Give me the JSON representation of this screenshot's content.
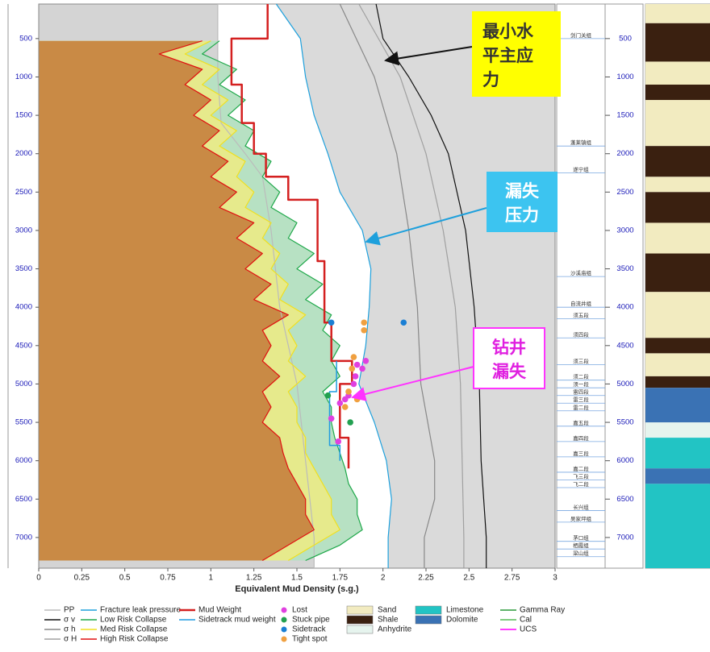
{
  "chart_data": {
    "type": "line",
    "orientation": "vertical-depth",
    "x_label": "Equivalent Mud Density (s.g.)",
    "xlim": [
      0,
      3
    ],
    "xticks": [
      0,
      0.25,
      0.5,
      0.75,
      1,
      1.25,
      1.5,
      1.75,
      2,
      2.25,
      2.5,
      2.75,
      3
    ],
    "ylim": [
      50,
      7400
    ],
    "y_inverted": true,
    "yticks": [
      500,
      1000,
      1500,
      2000,
      2500,
      3000,
      3500,
      4000,
      4500,
      5000,
      5500,
      6000,
      6500,
      7000
    ],
    "series": [
      {
        "name": "PP",
        "color": "#bbbbbb",
        "style": "line",
        "fill": "#d4d4d4",
        "fill_side": "left",
        "values": [
          1.04,
          1.04,
          1.06,
          1.2,
          1.3,
          1.35,
          1.4,
          1.5,
          1.55,
          1.6,
          1.6
        ],
        "depth": [
          50,
          1000,
          1600,
          2000,
          2300,
          3000,
          4000,
          5000,
          6000,
          7000,
          7400
        ]
      },
      {
        "name": "σ v",
        "color": "#111111",
        "style": "line",
        "fill": "#a8a8a8",
        "fill_side": "right",
        "values": [
          1.96,
          2.0,
          2.15,
          2.28,
          2.38,
          2.48,
          2.53,
          2.56,
          2.57,
          2.6,
          2.6
        ],
        "depth": [
          50,
          500,
          1000,
          1500,
          2000,
          3000,
          4000,
          5000,
          6000,
          7000,
          7400
        ]
      },
      {
        "name": "σ h",
        "color": "#888888",
        "style": "line",
        "fill": "#c8c8c8",
        "fill_side": "right",
        "values": [
          1.75,
          1.95,
          2.08,
          2.15,
          2.2,
          2.22,
          2.3,
          2.3,
          2.24,
          2.24
        ],
        "depth": [
          50,
          1000,
          2000,
          3000,
          4000,
          5000,
          6000,
          6500,
          7000,
          7400
        ]
      },
      {
        "name": "σ H",
        "color": "#a0a0a0",
        "style": "line",
        "fill": "#b6b6b6",
        "fill_side": "right",
        "values": [
          1.86,
          2.1,
          2.25,
          2.35,
          2.42,
          2.45,
          2.46,
          2.47,
          2.47
        ],
        "depth": [
          50,
          1000,
          2000,
          3000,
          4000,
          5000,
          6000,
          7000,
          7400
        ]
      },
      {
        "name": "Fracture leak pressure",
        "color": "#1ea0dc",
        "style": "line",
        "fill": "#dadada",
        "fill_side": "right",
        "values": [
          1.38,
          1.52,
          1.55,
          1.6,
          1.68,
          1.75,
          1.88,
          1.93,
          1.92,
          1.9,
          1.86,
          1.95,
          2.02,
          2.05,
          2.03,
          2.03
        ],
        "depth": [
          50,
          500,
          1000,
          1500,
          2000,
          2500,
          3000,
          3500,
          4000,
          4500,
          5000,
          5500,
          6000,
          6500,
          7000,
          7400
        ]
      },
      {
        "name": "Low Risk Collapse",
        "color": "#1fa84a",
        "style": "line",
        "fill": "#b7e1c3",
        "fill_side": "left",
        "values": [
          1.05,
          0.95,
          1.15,
          1.05,
          1.2,
          1.1,
          1.25,
          1.2,
          1.35,
          1.3,
          1.4,
          1.35,
          1.5,
          1.45,
          1.6,
          1.5,
          1.65,
          1.55,
          1.7,
          1.65,
          1.75,
          1.7,
          1.75,
          1.65,
          1.7,
          1.7,
          1.72,
          1.75,
          1.78,
          1.8,
          1.85,
          1.85,
          1.88,
          1.75,
          1.55
        ],
        "depth": [
          530,
          700,
          900,
          1100,
          1300,
          1500,
          1700,
          1900,
          2100,
          2300,
          2500,
          2700,
          2900,
          3100,
          3300,
          3500,
          3700,
          3900,
          4100,
          4300,
          4500,
          4700,
          4900,
          5100,
          5300,
          5500,
          5700,
          5900,
          6100,
          6300,
          6500,
          6700,
          6900,
          7100,
          7300
        ]
      },
      {
        "name": "Med Risk Collapse",
        "color": "#f0e020",
        "style": "line",
        "fill": "#e6ea8c",
        "fill_side": "left",
        "values": [
          1.0,
          0.85,
          1.05,
          0.95,
          1.1,
          1.0,
          1.15,
          1.05,
          1.2,
          1.15,
          1.25,
          1.2,
          1.35,
          1.3,
          1.4,
          1.35,
          1.45,
          1.4,
          1.55,
          1.45,
          1.5,
          1.45,
          1.55,
          1.45,
          1.5,
          1.5,
          1.55,
          1.55,
          1.6,
          1.65,
          1.7,
          1.7,
          1.75,
          1.6,
          1.45
        ],
        "depth": [
          530,
          700,
          900,
          1100,
          1300,
          1500,
          1700,
          1900,
          2100,
          2300,
          2500,
          2700,
          2900,
          3100,
          3300,
          3500,
          3700,
          3900,
          4100,
          4300,
          4500,
          4700,
          4900,
          5100,
          5300,
          5500,
          5700,
          5900,
          6100,
          6300,
          6500,
          6700,
          6900,
          7100,
          7300
        ]
      },
      {
        "name": "High Risk Collapse",
        "color": "#e01010",
        "style": "line",
        "fill": "#c98a45",
        "fill_side": "left",
        "values": [
          0.95,
          0.7,
          0.95,
          0.85,
          1.0,
          0.9,
          1.05,
          0.95,
          1.1,
          1.0,
          1.15,
          1.05,
          1.25,
          1.15,
          1.3,
          1.2,
          1.35,
          1.25,
          1.45,
          1.3,
          1.35,
          1.3,
          1.4,
          1.3,
          1.35,
          1.3,
          1.4,
          1.42,
          1.45,
          1.5,
          1.55,
          1.55,
          1.6,
          1.45,
          1.3
        ],
        "depth": [
          530,
          700,
          900,
          1100,
          1300,
          1500,
          1700,
          1900,
          2100,
          2300,
          2500,
          2700,
          2900,
          3100,
          3300,
          3500,
          3700,
          3900,
          4100,
          4300,
          4500,
          4700,
          4900,
          5100,
          5300,
          5500,
          5700,
          5900,
          6100,
          6300,
          6500,
          6700,
          6900,
          7100,
          7300
        ]
      },
      {
        "name": "Mud Weight",
        "color": "#d42020",
        "style": "line",
        "width": 2.5,
        "values": [
          1.33,
          1.33,
          1.12,
          1.12,
          1.18,
          1.18,
          1.25,
          1.25,
          1.32,
          1.32,
          1.45,
          1.45,
          1.62,
          1.62,
          1.66,
          1.66,
          1.7,
          1.7,
          1.82,
          1.82,
          1.75,
          1.75,
          1.8,
          1.8
        ],
        "depth": [
          50,
          500,
          500,
          1100,
          1100,
          1600,
          1600,
          2000,
          2000,
          2300,
          2300,
          2600,
          2600,
          3400,
          3400,
          4200,
          4200,
          4700,
          4700,
          5000,
          5000,
          5700,
          5700,
          6100
        ]
      },
      {
        "name": "Sidetrack mud weight",
        "color": "#1f9be0",
        "style": "line",
        "width": 1.5,
        "values": [
          1.73,
          1.73,
          1.69,
          1.69,
          1.75,
          1.75
        ],
        "depth": [
          4700,
          5100,
          5100,
          5800,
          5800,
          6000
        ]
      },
      {
        "name": "Lost",
        "color": "#e040e0",
        "style": "points",
        "values": [
          1.9,
          1.85,
          1.88,
          1.84,
          1.83,
          1.8,
          1.78,
          1.75,
          1.7,
          1.74
        ],
        "depth": [
          4700,
          4750,
          4800,
          4900,
          5000,
          5150,
          5200,
          5250,
          5450,
          5750
        ]
      },
      {
        "name": "Stuck pipe",
        "color": "#22a050",
        "style": "points",
        "values": [
          1.68,
          1.81
        ],
        "depth": [
          5150,
          5500
        ]
      },
      {
        "name": "Sidetrack",
        "color": "#1a7fd4",
        "style": "points",
        "values": [
          1.7,
          2.12
        ],
        "depth": [
          4200,
          4200
        ]
      },
      {
        "name": "Tight spot",
        "color": "#f0a040",
        "style": "points",
        "values": [
          1.89,
          1.89,
          1.83,
          1.82,
          1.8,
          1.78,
          1.85
        ],
        "depth": [
          4200,
          4300,
          4650,
          4800,
          5100,
          5300,
          5200
        ]
      }
    ],
    "lithology": [
      {
        "name": "Sand",
        "color": "#f2ebc0",
        "intervals": [
          [
            50,
            300
          ],
          [
            800,
            1100
          ],
          [
            1300,
            1900
          ],
          [
            2300,
            2500
          ],
          [
            2900,
            3300
          ],
          [
            3800,
            4400
          ],
          [
            4600,
            4900
          ]
        ]
      },
      {
        "name": "Shale",
        "color": "#3a2010",
        "intervals": [
          [
            300,
            800
          ],
          [
            1100,
            1300
          ],
          [
            1900,
            2300
          ],
          [
            2500,
            2900
          ],
          [
            3300,
            3800
          ],
          [
            4400,
            4600
          ],
          [
            4900,
            5050
          ]
        ]
      },
      {
        "name": "Anhydrite",
        "color": "#e6f4ee",
        "intervals": [
          [
            5500,
            5700
          ]
        ]
      },
      {
        "name": "Limestone",
        "color": "#22c4c4",
        "intervals": [
          [
            5700,
            6100
          ],
          [
            6300,
            7400
          ]
        ]
      },
      {
        "name": "Dolomite",
        "color": "#3a72b4",
        "intervals": [
          [
            5050,
            5500
          ],
          [
            6100,
            6300
          ]
        ]
      }
    ],
    "curve_legend": [
      {
        "name": "Gamma Ray",
        "color": "#2a9a3a"
      },
      {
        "name": "Cal",
        "color": "#55bb55"
      },
      {
        "name": "UCS",
        "color": "#ff00ff"
      }
    ],
    "formations": [
      {
        "name": "剑门关组",
        "depth": 500
      },
      {
        "name": "蓬莱镇组",
        "depth": 1900
      },
      {
        "name": "遂宁组",
        "depth": 2250
      },
      {
        "name": "沙溪庙组",
        "depth": 3600
      },
      {
        "name": "自流井组",
        "depth": 4000
      },
      {
        "name": "须五段",
        "depth": 4150
      },
      {
        "name": "须四段",
        "depth": 4400
      },
      {
        "name": "须三段",
        "depth": 4750
      },
      {
        "name": "须二段",
        "depth": 4950
      },
      {
        "name": "须一段",
        "depth": 5050
      },
      {
        "name": "雷四段",
        "depth": 5150
      },
      {
        "name": "雷三段",
        "depth": 5250
      },
      {
        "name": "雷二段",
        "depth": 5350
      },
      {
        "name": "嘉五段",
        "depth": 5550
      },
      {
        "name": "嘉四段",
        "depth": 5750
      },
      {
        "name": "嘉三段",
        "depth": 5950
      },
      {
        "name": "嘉二段",
        "depth": 6150
      },
      {
        "name": "飞三段",
        "depth": 6250
      },
      {
        "name": "飞二段",
        "depth": 6350
      },
      {
        "name": "长兴组",
        "depth": 6650
      },
      {
        "name": "吴家坪组",
        "depth": 6800
      },
      {
        "name": "茅口组",
        "depth": 7050
      },
      {
        "name": "栖霞组",
        "depth": 7150
      },
      {
        "name": "梁山组",
        "depth": 7250
      }
    ],
    "annotations": [
      {
        "lines": [
          "最小水",
          "平主应",
          "力"
        ]
      },
      {
        "lines": [
          "漏失",
          "压力"
        ]
      },
      {
        "lines": [
          "钻井",
          "漏失"
        ]
      }
    ]
  }
}
